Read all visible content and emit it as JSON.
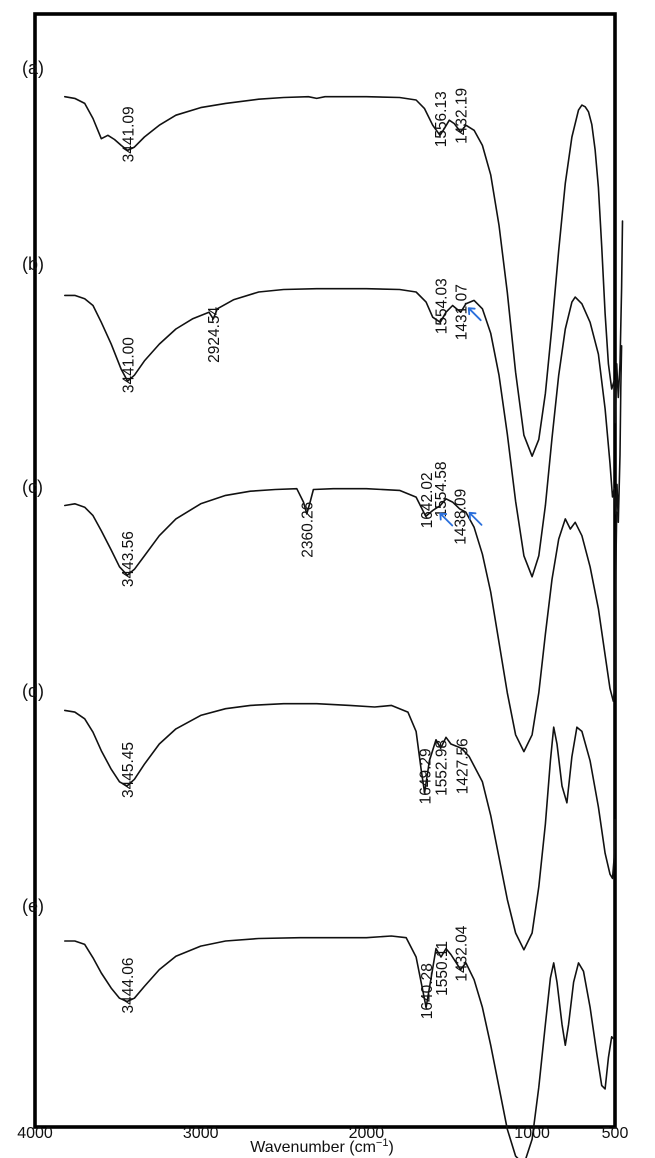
{
  "chart_data": {
    "type": "line",
    "title": "",
    "xlabel": "Wavenumber (cm",
    "xlabel_sup": "−1",
    "xlabel_close": ")",
    "ylabel": "",
    "xlim": [
      4000,
      500
    ],
    "x_reversed": true,
    "xticks": [
      {
        "value": 4000,
        "label": "4000"
      },
      {
        "value": 3000,
        "label": "3000"
      },
      {
        "value": 2000,
        "label": "2000"
      },
      {
        "value": 1000,
        "label": "1000"
      },
      {
        "value": 500,
        "label": "500"
      }
    ],
    "grid": false,
    "legend": "none",
    "arrow_color": "#2a6fdb",
    "series": [
      {
        "name": "(a)",
        "peaks": [
          {
            "x": 3441.09,
            "label": "3441.09"
          },
          {
            "x": 1556.13,
            "label": "1556.13"
          },
          {
            "x": 1432.19,
            "label": "1432.19"
          }
        ],
        "points": [
          [
            3820,
            0.02
          ],
          [
            3760,
            0.04
          ],
          [
            3700,
            0.1
          ],
          [
            3650,
            0.28
          ],
          [
            3600,
            0.52
          ],
          [
            3560,
            0.48
          ],
          [
            3520,
            0.53
          ],
          [
            3480,
            0.6
          ],
          [
            3441,
            0.66
          ],
          [
            3400,
            0.62
          ],
          [
            3340,
            0.5
          ],
          [
            3250,
            0.36
          ],
          [
            3150,
            0.24
          ],
          [
            3000,
            0.15
          ],
          [
            2850,
            0.1
          ],
          [
            2650,
            0.05
          ],
          [
            2500,
            0.03
          ],
          [
            2350,
            0.02
          ],
          [
            2300,
            0.04
          ],
          [
            2250,
            0.02
          ],
          [
            2000,
            0.02
          ],
          [
            1800,
            0.03
          ],
          [
            1700,
            0.06
          ],
          [
            1650,
            0.16
          ],
          [
            1600,
            0.36
          ],
          [
            1556,
            0.48
          ],
          [
            1530,
            0.4
          ],
          [
            1500,
            0.3
          ],
          [
            1470,
            0.34
          ],
          [
            1432,
            0.44
          ],
          [
            1400,
            0.36
          ],
          [
            1350,
            0.42
          ],
          [
            1300,
            0.6
          ],
          [
            1250,
            0.95
          ],
          [
            1200,
            1.55
          ],
          [
            1150,
            2.35
          ],
          [
            1100,
            3.3
          ],
          [
            1050,
            4.05
          ],
          [
            1000,
            4.3
          ],
          [
            960,
            4.1
          ],
          [
            920,
            3.55
          ],
          [
            880,
            2.75
          ],
          [
            840,
            1.85
          ],
          [
            800,
            1.05
          ],
          [
            760,
            0.5
          ],
          [
            720,
            0.18
          ],
          [
            700,
            0.12
          ],
          [
            680,
            0.14
          ],
          [
            660,
            0.2
          ],
          [
            640,
            0.35
          ],
          [
            620,
            0.65
          ],
          [
            600,
            1.1
          ],
          [
            580,
            1.8
          ],
          [
            560,
            2.6
          ],
          [
            540,
            3.2
          ],
          [
            520,
            3.5
          ],
          [
            505,
            3.4
          ],
          [
            498,
            3.9
          ],
          [
            490,
            3.2
          ],
          [
            480,
            3.6
          ],
          [
            470,
            3.2
          ],
          [
            460,
            2.3
          ],
          [
            455,
            1.5
          ]
        ]
      },
      {
        "name": "(b)",
        "peaks": [
          {
            "x": 3441.0,
            "label": "3441.00"
          },
          {
            "x": 2924.54,
            "label": "2924.54"
          },
          {
            "x": 1554.03,
            "label": "1554.03"
          },
          {
            "x": 1431.07,
            "label": "1431.07"
          }
        ],
        "points": [
          [
            3820,
            0.1
          ],
          [
            3760,
            0.1
          ],
          [
            3700,
            0.14
          ],
          [
            3650,
            0.22
          ],
          [
            3600,
            0.42
          ],
          [
            3540,
            0.68
          ],
          [
            3480,
            0.98
          ],
          [
            3441,
            1.12
          ],
          [
            3400,
            1.05
          ],
          [
            3340,
            0.88
          ],
          [
            3250,
            0.68
          ],
          [
            3150,
            0.5
          ],
          [
            3050,
            0.38
          ],
          [
            2950,
            0.3
          ],
          [
            2924,
            0.38
          ],
          [
            2900,
            0.26
          ],
          [
            2800,
            0.15
          ],
          [
            2650,
            0.06
          ],
          [
            2500,
            0.03
          ],
          [
            2300,
            0.02
          ],
          [
            2000,
            0.02
          ],
          [
            1800,
            0.03
          ],
          [
            1700,
            0.06
          ],
          [
            1640,
            0.18
          ],
          [
            1600,
            0.36
          ],
          [
            1554,
            0.42
          ],
          [
            1520,
            0.3
          ],
          [
            1480,
            0.22
          ],
          [
            1431,
            0.3
          ],
          [
            1400,
            0.2
          ],
          [
            1350,
            0.16
          ],
          [
            1300,
            0.26
          ],
          [
            1250,
            0.55
          ],
          [
            1200,
            1.05
          ],
          [
            1150,
            1.75
          ],
          [
            1100,
            2.55
          ],
          [
            1050,
            3.2
          ],
          [
            1000,
            3.45
          ],
          [
            960,
            3.2
          ],
          [
            920,
            2.6
          ],
          [
            880,
            1.8
          ],
          [
            840,
            1.05
          ],
          [
            800,
            0.5
          ],
          [
            760,
            0.18
          ],
          [
            740,
            0.12
          ],
          [
            700,
            0.2
          ],
          [
            650,
            0.42
          ],
          [
            600,
            0.8
          ],
          [
            560,
            1.45
          ],
          [
            530,
            2.1
          ],
          [
            515,
            2.5
          ],
          [
            505,
            2.4
          ],
          [
            495,
            2.7
          ],
          [
            488,
            2.35
          ],
          [
            480,
            2.8
          ],
          [
            470,
            2.0
          ],
          [
            465,
            1.2
          ],
          [
            460,
            0.7
          ]
        ]
      },
      {
        "name": "(c)",
        "peaks": [
          {
            "x": 3443.56,
            "label": "3443.56"
          },
          {
            "x": 2360.26,
            "label": "2360.26"
          },
          {
            "x": 1642.02,
            "label": "1642.02"
          },
          {
            "x": 1554.58,
            "label": "1554.58"
          },
          {
            "x": 1438.09,
            "label": "1438.09"
          }
        ],
        "points": [
          [
            3820,
            0.22
          ],
          [
            3760,
            0.2
          ],
          [
            3700,
            0.24
          ],
          [
            3650,
            0.34
          ],
          [
            3600,
            0.52
          ],
          [
            3540,
            0.75
          ],
          [
            3490,
            0.95
          ],
          [
            3443,
            1.05
          ],
          [
            3400,
            0.98
          ],
          [
            3340,
            0.82
          ],
          [
            3250,
            0.58
          ],
          [
            3150,
            0.38
          ],
          [
            3000,
            0.2
          ],
          [
            2850,
            0.1
          ],
          [
            2700,
            0.05
          ],
          [
            2550,
            0.03
          ],
          [
            2420,
            0.02
          ],
          [
            2380,
            0.18
          ],
          [
            2360,
            0.32
          ],
          [
            2340,
            0.18
          ],
          [
            2320,
            0.03
          ],
          [
            2200,
            0.02
          ],
          [
            2000,
            0.02
          ],
          [
            1800,
            0.04
          ],
          [
            1700,
            0.12
          ],
          [
            1642,
            0.35
          ],
          [
            1600,
            0.28
          ],
          [
            1554,
            0.22
          ],
          [
            1520,
            0.14
          ],
          [
            1480,
            0.18
          ],
          [
            1438,
            0.26
          ],
          [
            1400,
            0.3
          ],
          [
            1350,
            0.48
          ],
          [
            1300,
            0.8
          ],
          [
            1250,
            1.25
          ],
          [
            1200,
            1.85
          ],
          [
            1150,
            2.45
          ],
          [
            1100,
            2.95
          ],
          [
            1050,
            3.15
          ],
          [
            1000,
            2.95
          ],
          [
            960,
            2.45
          ],
          [
            920,
            1.75
          ],
          [
            880,
            1.1
          ],
          [
            840,
            0.62
          ],
          [
            800,
            0.38
          ],
          [
            770,
            0.5
          ],
          [
            740,
            0.42
          ],
          [
            700,
            0.58
          ],
          [
            650,
            0.95
          ],
          [
            600,
            1.45
          ],
          [
            560,
            2.0
          ],
          [
            530,
            2.4
          ],
          [
            510,
            2.55
          ],
          [
            500,
            2.35
          ],
          [
            495,
            1.0
          ],
          [
            490,
            0.3
          ]
        ]
      },
      {
        "name": "(d)",
        "peaks": [
          {
            "x": 3445.45,
            "label": "3445.45"
          },
          {
            "x": 1649.29,
            "label": "1649.29"
          },
          {
            "x": 1552.98,
            "label": "1552.98"
          },
          {
            "x": 1427.56,
            "label": "1427.56"
          }
        ],
        "points": [
          [
            3820,
            0.1
          ],
          [
            3760,
            0.12
          ],
          [
            3700,
            0.2
          ],
          [
            3650,
            0.36
          ],
          [
            3600,
            0.58
          ],
          [
            3540,
            0.8
          ],
          [
            3490,
            0.95
          ],
          [
            3445,
            1.0
          ],
          [
            3400,
            0.92
          ],
          [
            3340,
            0.74
          ],
          [
            3250,
            0.5
          ],
          [
            3150,
            0.32
          ],
          [
            3000,
            0.16
          ],
          [
            2850,
            0.08
          ],
          [
            2700,
            0.04
          ],
          [
            2500,
            0.02
          ],
          [
            2300,
            0.02
          ],
          [
            2100,
            0.04
          ],
          [
            1950,
            0.06
          ],
          [
            1850,
            0.04
          ],
          [
            1750,
            0.12
          ],
          [
            1700,
            0.35
          ],
          [
            1670,
            0.8
          ],
          [
            1649,
            1.08
          ],
          [
            1620,
            0.7
          ],
          [
            1580,
            0.45
          ],
          [
            1552,
            0.55
          ],
          [
            1520,
            0.42
          ],
          [
            1490,
            0.5
          ],
          [
            1427,
            0.55
          ],
          [
            1380,
            0.65
          ],
          [
            1300,
            0.95
          ],
          [
            1250,
            1.35
          ],
          [
            1200,
            1.85
          ],
          [
            1150,
            2.35
          ],
          [
            1100,
            2.75
          ],
          [
            1050,
            2.95
          ],
          [
            1000,
            2.75
          ],
          [
            960,
            2.2
          ],
          [
            920,
            1.45
          ],
          [
            890,
            0.7
          ],
          [
            870,
            0.3
          ],
          [
            850,
            0.5
          ],
          [
            820,
            1.0
          ],
          [
            790,
            1.2
          ],
          [
            760,
            0.65
          ],
          [
            730,
            0.3
          ],
          [
            700,
            0.35
          ],
          [
            650,
            0.7
          ],
          [
            600,
            1.25
          ],
          [
            560,
            1.8
          ],
          [
            530,
            2.05
          ],
          [
            515,
            2.1
          ],
          [
            505,
            1.85
          ],
          [
            500,
            1.4
          ]
        ]
      },
      {
        "name": "(e)",
        "peaks": [
          {
            "x": 3444.06,
            "label": "3444.06"
          },
          {
            "x": 1640.28,
            "label": "1640.28"
          },
          {
            "x": 1550.11,
            "label": "1550.11"
          },
          {
            "x": 1432.04,
            "label": "1432.04"
          }
        ],
        "points": [
          [
            3820,
            0.06
          ],
          [
            3760,
            0.06
          ],
          [
            3700,
            0.1
          ],
          [
            3650,
            0.26
          ],
          [
            3600,
            0.44
          ],
          [
            3540,
            0.62
          ],
          [
            3490,
            0.74
          ],
          [
            3444,
            0.78
          ],
          [
            3400,
            0.74
          ],
          [
            3340,
            0.6
          ],
          [
            3250,
            0.4
          ],
          [
            3150,
            0.24
          ],
          [
            3000,
            0.12
          ],
          [
            2850,
            0.06
          ],
          [
            2650,
            0.03
          ],
          [
            2400,
            0.02
          ],
          [
            2200,
            0.02
          ],
          [
            2000,
            0.02
          ],
          [
            1850,
            0.0
          ],
          [
            1760,
            0.02
          ],
          [
            1700,
            0.25
          ],
          [
            1660,
            0.65
          ],
          [
            1640,
            0.85
          ],
          [
            1610,
            0.5
          ],
          [
            1580,
            0.15
          ],
          [
            1550,
            0.25
          ],
          [
            1520,
            0.15
          ],
          [
            1490,
            0.22
          ],
          [
            1432,
            0.4
          ],
          [
            1400,
            0.32
          ],
          [
            1350,
            0.52
          ],
          [
            1300,
            0.85
          ],
          [
            1250,
            1.3
          ],
          [
            1200,
            1.8
          ],
          [
            1150,
            2.3
          ],
          [
            1100,
            2.62
          ],
          [
            1050,
            2.72
          ],
          [
            1000,
            2.42
          ],
          [
            960,
            1.8
          ],
          [
            920,
            1.05
          ],
          [
            890,
            0.5
          ],
          [
            870,
            0.32
          ],
          [
            850,
            0.55
          ],
          [
            820,
            1.05
          ],
          [
            800,
            1.3
          ],
          [
            780,
            1.05
          ],
          [
            750,
            0.55
          ],
          [
            720,
            0.32
          ],
          [
            690,
            0.42
          ],
          [
            650,
            0.85
          ],
          [
            610,
            1.4
          ],
          [
            580,
            1.78
          ],
          [
            560,
            1.82
          ],
          [
            540,
            1.45
          ],
          [
            520,
            1.2
          ],
          [
            510,
            1.22
          ]
        ]
      }
    ]
  }
}
